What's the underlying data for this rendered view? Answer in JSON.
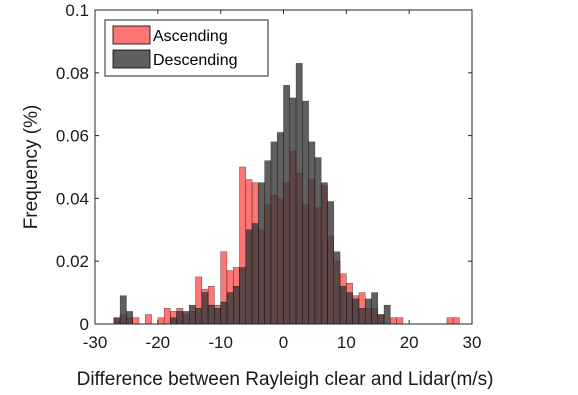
{
  "chart_data": {
    "type": "bar",
    "subtype": "overlaid-histogram",
    "title": "",
    "xlabel": "Difference between Rayleigh clear and Lidar(m/s)",
    "ylabel": "Frequency (%)",
    "xlim": [
      -30,
      30
    ],
    "ylim": [
      0,
      0.1
    ],
    "xticks": [
      "-30",
      "-20",
      "-10",
      "0",
      "10",
      "20",
      "30"
    ],
    "yticks": [
      "0",
      "0.02",
      "0.04",
      "0.06",
      "0.08",
      "0.1"
    ],
    "grid": false,
    "legend_position": "top-left",
    "bin_width": 1,
    "series": [
      {
        "name": "Ascending",
        "color": "#ff3b3b",
        "opacity": 0.7,
        "bin_centers": [
          -26.5,
          -25.5,
          -24.5,
          -23.5,
          -22.5,
          -21.5,
          -20.5,
          -19.5,
          -18.5,
          -17.5,
          -16.5,
          -15.5,
          -14.5,
          -13.5,
          -12.5,
          -11.5,
          -10.5,
          -9.5,
          -8.5,
          -7.5,
          -6.5,
          -5.5,
          -4.5,
          -3.5,
          -2.5,
          -1.5,
          -0.5,
          0.5,
          1.5,
          2.5,
          3.5,
          4.5,
          5.5,
          6.5,
          7.5,
          8.5,
          9.5,
          10.5,
          11.5,
          12.5,
          13.5,
          14.5,
          15.5,
          16.5,
          17.5,
          18.5,
          19.5,
          20.5,
          21.5,
          22.5,
          23.5,
          24.5,
          25.5,
          26.5,
          27.5
        ],
        "values": [
          0.002,
          0.003,
          0.002,
          0.002,
          0,
          0.003,
          0,
          0.002,
          0.005,
          0.004,
          0.005,
          0.003,
          0.004,
          0.015,
          0.011,
          0.012,
          0.006,
          0.023,
          0.017,
          0.018,
          0.05,
          0.046,
          0.045,
          0.03,
          0.038,
          0.041,
          0.04,
          0.045,
          0.055,
          0.048,
          0.038,
          0.046,
          0.037,
          0.044,
          0.028,
          0.02,
          0.016,
          0.013,
          0.009,
          0.01,
          0.005,
          0.005,
          0.003,
          0,
          0.002,
          0.002,
          0,
          0,
          0,
          0,
          0,
          0,
          0,
          0.002,
          0.002
        ]
      },
      {
        "name": "Descending",
        "color": "#3c3c3c",
        "opacity": 0.82,
        "bin_centers": [
          -26.5,
          -25.5,
          -24.5,
          -23.5,
          -22.5,
          -21.5,
          -20.5,
          -19.5,
          -18.5,
          -17.5,
          -16.5,
          -15.5,
          -14.5,
          -13.5,
          -12.5,
          -11.5,
          -10.5,
          -9.5,
          -8.5,
          -7.5,
          -6.5,
          -5.5,
          -4.5,
          -3.5,
          -2.5,
          -1.5,
          -0.5,
          0.5,
          1.5,
          2.5,
          3.5,
          4.5,
          5.5,
          6.5,
          7.5,
          8.5,
          9.5,
          10.5,
          11.5,
          12.5,
          13.5,
          14.5,
          15.5,
          16.5,
          17.5,
          18.5,
          19.5,
          20.5,
          21.5,
          22.5,
          23.5,
          24.5,
          25.5,
          26.5,
          27.5
        ],
        "values": [
          0.002,
          0.009,
          0.004,
          0,
          0,
          0,
          0,
          0,
          0,
          0.002,
          0.004,
          0.004,
          0.006,
          0.005,
          0.01,
          0.006,
          0.005,
          0.007,
          0.01,
          0.012,
          0.018,
          0.03,
          0.032,
          0.045,
          0.052,
          0.058,
          0.061,
          0.076,
          0.072,
          0.083,
          0.071,
          0.058,
          0.053,
          0.045,
          0.039,
          0.023,
          0.012,
          0.01,
          0.008,
          0.005,
          0.008,
          0.01,
          0.003,
          0.006,
          0,
          0,
          0,
          0,
          0,
          0,
          0,
          0,
          0,
          0,
          0
        ]
      }
    ]
  }
}
